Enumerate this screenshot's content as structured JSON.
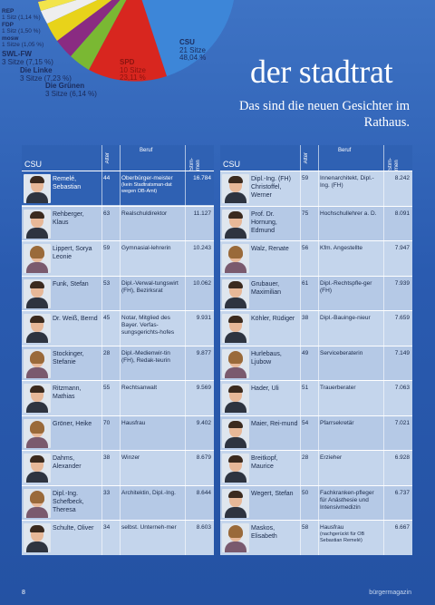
{
  "pie": {
    "labels": [
      {
        "party": "REP",
        "seats": "1 Sitz (1,14 %)"
      },
      {
        "party": "FDP",
        "seats": "1 Sitz (1,50 %)"
      },
      {
        "party": "mosw",
        "seats": "1 Sitze (1,05 %)"
      },
      {
        "party": "SWL-FW",
        "seats": "3 Sitze (7,15 %)"
      },
      {
        "party": "Die Linke",
        "seats": "3 Sitze (7,23 %)"
      },
      {
        "party": "Die Grünen",
        "seats": "3 Sitze (6,14 %)"
      },
      {
        "party": "SPD",
        "seats": "10 Sitze",
        "percent": "23,11 %"
      },
      {
        "party": "CSU",
        "seats": "21 Sitze",
        "percent": "48,04 %"
      }
    ],
    "colors": {
      "csu": "#3d86d8",
      "spd": "#d8261f",
      "gruene": "#7ab833",
      "linke": "#8a2b82",
      "swl": "#e8d31a",
      "mosw": "#eeeeee",
      "fdp": "#f2e44a",
      "rep": "#5a6ab0"
    }
  },
  "header": {
    "title": "der stadtrat",
    "subtitle": "Das sind die neuen Gesichter im Rathaus."
  },
  "columns": {
    "party": "CSU",
    "alter": "Alter",
    "beruf": "Beruf",
    "stimmen": "Stim-men"
  },
  "left_rows": [
    {
      "name": "Remelé, Sebastian",
      "age": "44",
      "job": "Oberbürger-meister",
      "note": "(kein Stadtratsman-dat wegen OB-Amt)",
      "votes": "16.784",
      "highlight": true,
      "gender": "m"
    },
    {
      "name": "Rehberger, Klaus",
      "age": "63",
      "job": "Realschuldirektor",
      "votes": "11.127",
      "gender": "m"
    },
    {
      "name": "Lippert, Sorya Leonie",
      "age": "59",
      "job": "Gymnasial-lehrerin",
      "votes": "10.243",
      "gender": "f"
    },
    {
      "name": "Funk, Stefan",
      "age": "53",
      "job": "Dipl.-Verwal-tungswirt (FH), Bezirksrat",
      "votes": "10.062",
      "gender": "m"
    },
    {
      "name": "Dr. Weiß, Bernd",
      "age": "45",
      "job": "Notar, Mitglied des Bayer. Verfas-sungsgerichts-hofes",
      "votes": "9.931",
      "gender": "m"
    },
    {
      "name": "Stockinger, Stefanie",
      "age": "28",
      "job": "Dipl.-Medienwir-tin (FH), Redak-teurin",
      "votes": "9.877",
      "gender": "f"
    },
    {
      "name": "Ritzmann, Mathias",
      "age": "55",
      "job": "Rechtsanwalt",
      "votes": "9.569",
      "gender": "m"
    },
    {
      "name": "Gröner, Heike",
      "age": "70",
      "job": "Hausfrau",
      "votes": "9.402",
      "gender": "f"
    },
    {
      "name": "Dahms, Alexander",
      "age": "38",
      "job": "Winzer",
      "votes": "8.679",
      "gender": "m"
    },
    {
      "name": "Dipl.-Ing. Schefbeck, Theresa",
      "age": "33",
      "job": "Architektin, Dipl.-Ing.",
      "votes": "8.644",
      "gender": "f"
    },
    {
      "name": "Schulte, Oliver",
      "age": "34",
      "job": "selbst. Unterneh-mer",
      "votes": "8.603",
      "gender": "m"
    }
  ],
  "right_rows": [
    {
      "name": "Dipl.-Ing. (FH) Christoffel, Werner",
      "age": "59",
      "job": "Innenarchitekt, Dipl.-Ing. (FH)",
      "votes": "8.242",
      "gender": "m"
    },
    {
      "name": "Prof. Dr. Hornung, Edmund",
      "age": "75",
      "job": "Hochschullehrer a. D.",
      "votes": "8.091",
      "gender": "m"
    },
    {
      "name": "Walz, Renate",
      "age": "56",
      "job": "Kfm. Angestellte",
      "votes": "7.947",
      "gender": "f"
    },
    {
      "name": "Grubauer, Maximilian",
      "age": "61",
      "job": "Dipl.-Rechtspfle-ger (FH)",
      "votes": "7.939",
      "gender": "m"
    },
    {
      "name": "Köhler, Rüdiger",
      "age": "38",
      "job": "Dipl.-Bauinge-nieur",
      "votes": "7.659",
      "gender": "m"
    },
    {
      "name": "Hurlebaus, Ljubow",
      "age": "49",
      "job": "Serviceberaterin",
      "votes": "7.149",
      "gender": "f"
    },
    {
      "name": "Hader, Uli",
      "age": "51",
      "job": "Trauerberater",
      "votes": "7.063",
      "gender": "m"
    },
    {
      "name": "Maier, Rei-mund",
      "age": "54",
      "job": "Pfarrsekretär",
      "votes": "7.021",
      "gender": "m"
    },
    {
      "name": "Breitkopf, Maurice",
      "age": "28",
      "job": "Erzieher",
      "votes": "6.928",
      "gender": "m"
    },
    {
      "name": "Wegert, Stefan",
      "age": "50",
      "job": "Fachkranken-pfleger für Anästhesie und Intensivmedizin",
      "votes": "6.737",
      "gender": "m"
    },
    {
      "name": "Maskos, Elisabeth",
      "age": "58",
      "job": "Hausfrau",
      "note": "(nachgerückt für OB Sebastian Remelé)",
      "votes": "6.667",
      "gender": "f"
    }
  ],
  "footer": {
    "page": "8",
    "magazine": "bürgermagazin"
  }
}
